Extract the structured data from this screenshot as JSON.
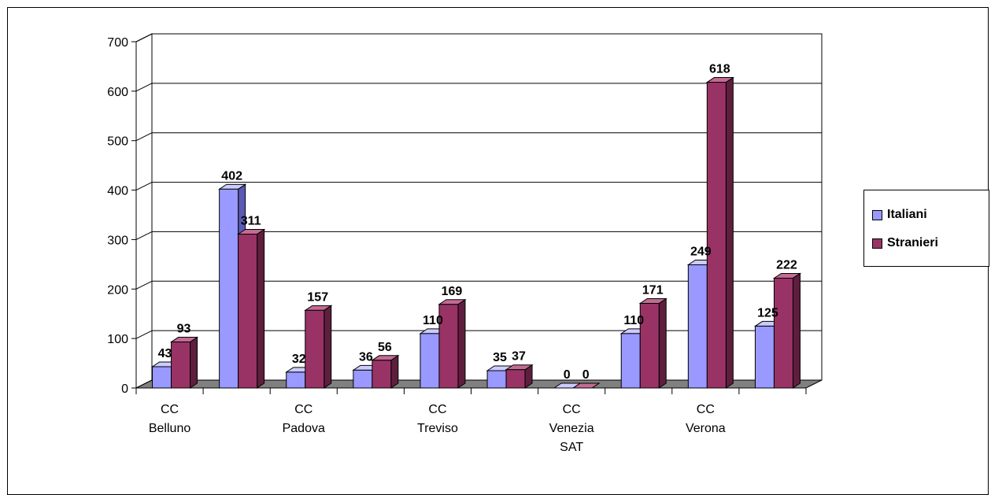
{
  "chart_data": {
    "type": "bar",
    "categories": [
      "CC Belluno",
      "",
      "CC Padova",
      "",
      "CC Treviso",
      "",
      "CC Venezia SAT",
      "",
      "CC Verona",
      ""
    ],
    "category_lines": [
      [
        "CC",
        "Belluno"
      ],
      [],
      [
        "CC",
        "Padova"
      ],
      [],
      [
        "CC",
        "Treviso"
      ],
      [],
      [
        "CC",
        "Venezia",
        "SAT"
      ],
      [],
      [
        "CC",
        "Verona"
      ],
      []
    ],
    "series": [
      {
        "name": "Italiani",
        "values": [
          43,
          402,
          32,
          36,
          110,
          35,
          0,
          110,
          249,
          125
        ]
      },
      {
        "name": "Stranieri",
        "values": [
          93,
          311,
          157,
          56,
          169,
          37,
          0,
          171,
          618,
          222
        ]
      }
    ],
    "ylim": [
      0,
      700
    ],
    "yticks": [
      0,
      100,
      200,
      300,
      400,
      500,
      600,
      700
    ],
    "grid": true,
    "legend_position": "right",
    "three_d": true
  },
  "colors": {
    "Italiani": {
      "front": "#9999ff",
      "top": "#ccccff",
      "side": "#5a5ab4"
    },
    "Stranieri": {
      "front": "#993366",
      "top": "#c36b93",
      "side": "#5e1f3e"
    },
    "floor": "#808080",
    "wall": "#ffffff"
  },
  "legend": {
    "items": [
      {
        "label": "Italiani"
      },
      {
        "label": "Stranieri"
      }
    ]
  }
}
